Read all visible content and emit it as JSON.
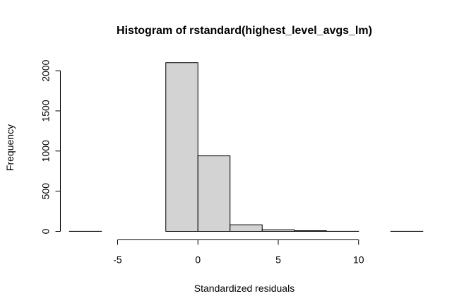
{
  "chart_data": {
    "type": "bar",
    "title": "Histogram of rstandard(highest_level_avgs_lm)",
    "xlabel": "Standardized residuals",
    "ylabel": "Frequency",
    "bin_edges": [
      -8,
      -6,
      -4,
      -2,
      0,
      2,
      4,
      6,
      8,
      10,
      12,
      14
    ],
    "values": [
      1,
      0,
      0,
      2100,
      940,
      82,
      20,
      8,
      1,
      0,
      1
    ],
    "xlim": [
      -8,
      14
    ],
    "ylim": [
      0,
      2100
    ],
    "x_ticks": [
      -5,
      0,
      5,
      10
    ],
    "y_ticks": [
      0,
      500,
      1000,
      1500,
      2000
    ],
    "bar_color": "#d3d3d3",
    "grid": false,
    "legend": "none"
  }
}
